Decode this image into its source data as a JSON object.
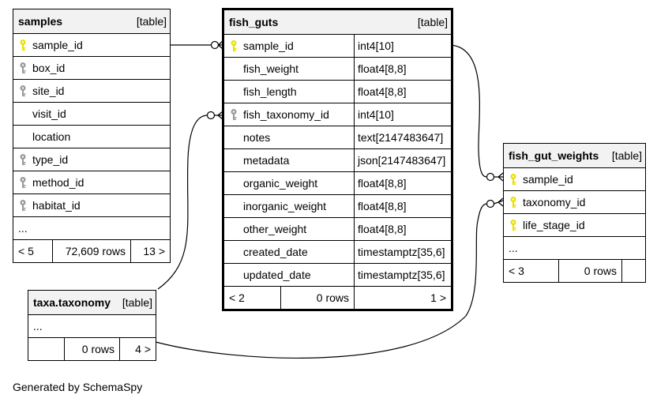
{
  "samples": {
    "name": "samples",
    "kind": "[table]",
    "columns": [
      {
        "name": "sample_id",
        "key": "primary"
      },
      {
        "name": "box_id",
        "key": "foreign"
      },
      {
        "name": "site_id",
        "key": "foreign"
      },
      {
        "name": "visit_id",
        "key": "none"
      },
      {
        "name": "location",
        "key": "none"
      },
      {
        "name": "type_id",
        "key": "foreign"
      },
      {
        "name": "method_id",
        "key": "foreign"
      },
      {
        "name": "habitat_id",
        "key": "foreign"
      }
    ],
    "more": "...",
    "footer": {
      "parents": "< 5",
      "rows": "72,609 rows",
      "children": "13 >"
    }
  },
  "fish_guts": {
    "name": "fish_guts",
    "kind": "[table]",
    "columns": [
      {
        "name": "sample_id",
        "type": "int4[10]",
        "key": "primary"
      },
      {
        "name": "fish_weight",
        "type": "float4[8,8]",
        "key": "none"
      },
      {
        "name": "fish_length",
        "type": "float4[8,8]",
        "key": "none"
      },
      {
        "name": "fish_taxonomy_id",
        "type": "int4[10]",
        "key": "foreign"
      },
      {
        "name": "notes",
        "type": "text[2147483647]",
        "key": "none"
      },
      {
        "name": "metadata",
        "type": "json[2147483647]",
        "key": "none"
      },
      {
        "name": "organic_weight",
        "type": "float4[8,8]",
        "key": "none"
      },
      {
        "name": "inorganic_weight",
        "type": "float4[8,8]",
        "key": "none"
      },
      {
        "name": "other_weight",
        "type": "float4[8,8]",
        "key": "none"
      },
      {
        "name": "created_date",
        "type": "timestamptz[35,6]",
        "key": "none"
      },
      {
        "name": "updated_date",
        "type": "timestamptz[35,6]",
        "key": "none"
      }
    ],
    "footer": {
      "parents": "< 2",
      "rows": "0 rows",
      "children": "1 >"
    }
  },
  "fish_gut_weights": {
    "name": "fish_gut_weights",
    "kind": "[table]",
    "columns": [
      {
        "name": "sample_id",
        "key": "primary"
      },
      {
        "name": "taxonomy_id",
        "key": "primary"
      },
      {
        "name": "life_stage_id",
        "key": "primary"
      }
    ],
    "more": "...",
    "footer": {
      "parents": "< 3",
      "rows": "0 rows",
      "children": ""
    }
  },
  "taxonomy": {
    "name": "taxa.taxonomy",
    "kind": "[table]",
    "more": "...",
    "footer": {
      "parents": "",
      "rows": "0 rows",
      "children": "4 >"
    }
  },
  "generated_by": "Generated by SchemaSpy",
  "colors": {
    "primary_key": "#e8e000",
    "foreign_key": "#9a9a9a",
    "header_bg": "#f2f2f2"
  }
}
